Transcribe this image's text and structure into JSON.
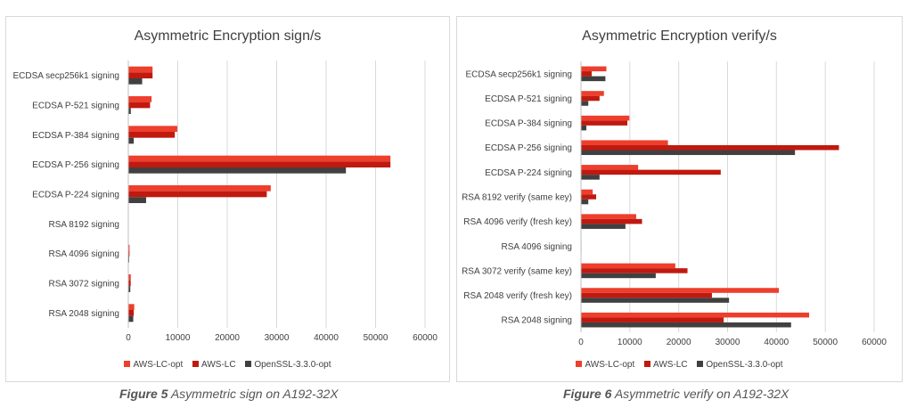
{
  "colors": {
    "AWS-LC-opt": "#ee3e2c",
    "AWS-LC": "#c0190f",
    "OpenSSL-3.3.0-opt": "#404040",
    "grid": "#d9d9d9"
  },
  "captions": {
    "left": {
      "prefix": "Figure 5",
      "text": " Asymmetric sign on A192-32X"
    },
    "right": {
      "prefix": "Figure 6",
      "text": " Asymmetric verify on A192-32X"
    }
  },
  "chart_data": [
    {
      "type": "bar",
      "orientation": "horizontal",
      "title": "Asymmetric Encryption sign/s",
      "categories": [
        "ECDSA secp256k1 signing",
        "ECDSA P-521 signing",
        "ECDSA P-384 signing",
        "ECDSA P-256 signing",
        "ECDSA P-224 signing",
        "RSA 8192 signing",
        "RSA 4096 signing",
        "RSA 3072 signing",
        "RSA 2048 signing"
      ],
      "series": [
        {
          "name": "AWS-LC-opt",
          "values": [
            4900,
            4700,
            9900,
            53000,
            28800,
            40,
            250,
            500,
            1200
          ]
        },
        {
          "name": "AWS-LC",
          "values": [
            4900,
            4400,
            9400,
            53000,
            28000,
            40,
            250,
            480,
            1100
          ]
        },
        {
          "name": "OpenSSL-3.3.0-opt",
          "values": [
            2800,
            500,
            1100,
            44000,
            3600,
            20,
            180,
            400,
            1000
          ]
        }
      ],
      "xlim": [
        0,
        60000
      ],
      "xticks": [
        "0",
        "10000",
        "20000",
        "30000",
        "40000",
        "50000",
        "60000"
      ],
      "xtick_values": [
        0,
        10000,
        20000,
        30000,
        40000,
        50000,
        60000
      ],
      "grid": true,
      "legend": "bottom"
    },
    {
      "type": "bar",
      "orientation": "horizontal",
      "title": "Asymmetric Encryption verify/s",
      "categories": [
        "ECDSA secp256k1 signing",
        "ECDSA P-521 signing",
        "ECDSA P-384 signing",
        "ECDSA P-256 signing",
        "ECDSA P-224 signing",
        "RSA 8192 verify (same key)",
        "RSA 4096 verify (fresh key)",
        "RSA 4096 signing",
        "RSA 3072 verify (same key)",
        "RSA 2048 verify (fresh key)",
        "RSA 2048 signing"
      ],
      "series": [
        {
          "name": "AWS-LC-opt",
          "values": [
            5200,
            4700,
            9900,
            17800,
            11700,
            2400,
            11300,
            100,
            19300,
            40500,
            46700
          ]
        },
        {
          "name": "AWS-LC",
          "values": [
            2200,
            3800,
            9500,
            52800,
            28600,
            3100,
            12500,
            100,
            21800,
            26800,
            29200
          ]
        },
        {
          "name": "OpenSSL-3.3.0-opt",
          "values": [
            5000,
            1500,
            1100,
            43800,
            3800,
            1500,
            9100,
            100,
            15300,
            30300,
            43000
          ]
        }
      ],
      "xlim": [
        0,
        60000
      ],
      "xticks": [
        "0",
        "10000",
        "20000",
        "30000",
        "40000",
        "50000",
        "60000"
      ],
      "xtick_values": [
        0,
        10000,
        20000,
        30000,
        40000,
        50000,
        60000
      ],
      "grid": true,
      "legend": "bottom"
    }
  ]
}
